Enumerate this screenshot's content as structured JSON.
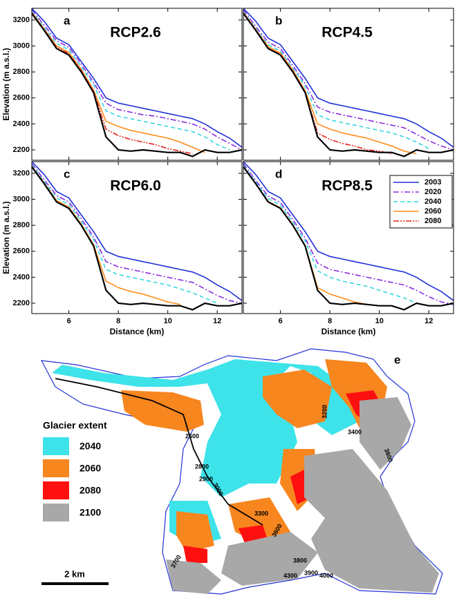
{
  "chart_data": [
    {
      "type": "line",
      "panel": "a",
      "title": "RCP2.6",
      "ylabel": "Elevation (m a.s.l.)",
      "x": [
        4.5,
        5,
        5.5,
        6,
        6.5,
        7,
        7.5,
        8,
        8.5,
        9,
        9.5,
        10,
        10.5,
        11,
        11.5,
        12,
        12.5,
        13
      ],
      "xlim": [
        4.5,
        13
      ],
      "xticks": [
        6,
        8,
        10,
        12
      ],
      "ylim": [
        2120,
        3290
      ],
      "yticks": [
        2200,
        2400,
        2600,
        2800,
        3000,
        3200
      ],
      "series": [
        {
          "color": "#000000",
          "style": "bold",
          "values": [
            3250,
            3120,
            2980,
            2930,
            2800,
            2640,
            2300,
            2200,
            2190,
            2200,
            2190,
            2180,
            2180,
            2150,
            2200,
            2180,
            2180,
            2200
          ]
        },
        {
          "color": "#1f2fd6",
          "style": "solid",
          "values": [
            3290,
            3190,
            3060,
            3010,
            2880,
            2750,
            2600,
            2560,
            2540,
            2520,
            2500,
            2480,
            2460,
            2440,
            2400,
            2340,
            2290,
            2220
          ]
        },
        {
          "color": "#8a2be2",
          "style": "dashdot",
          "values": [
            3280,
            3160,
            3040,
            2990,
            2860,
            2720,
            2560,
            2510,
            2490,
            2470,
            2460,
            2440,
            2420,
            2400,
            2360,
            2300,
            2250,
            2200
          ]
        },
        {
          "color": "#33d6e0",
          "style": "dashed",
          "values": [
            3270,
            3140,
            3020,
            2970,
            2840,
            2700,
            2500,
            2460,
            2440,
            2420,
            2400,
            2380,
            2360,
            2340,
            2300,
            2240,
            2200,
            null
          ]
        },
        {
          "color": "#ff8c1a",
          "style": "solid",
          "values": [
            3260,
            3130,
            3000,
            2950,
            2820,
            2660,
            2420,
            2380,
            2350,
            2330,
            2310,
            2290,
            2260,
            2220,
            2180,
            null,
            null,
            null
          ]
        },
        {
          "color": "#e8231e",
          "style": "dashdotdot",
          "values": [
            3255,
            3125,
            2990,
            2940,
            2810,
            2650,
            2360,
            2310,
            2280,
            2260,
            2240,
            2210,
            2190,
            2170,
            null,
            null,
            null,
            null
          ]
        }
      ]
    },
    {
      "type": "line",
      "panel": "b",
      "title": "RCP4.5",
      "x": [
        4.5,
        5,
        5.5,
        6,
        6.5,
        7,
        7.5,
        8,
        8.5,
        9,
        9.5,
        10,
        10.5,
        11,
        11.5,
        12,
        12.5,
        13
      ],
      "xlim": [
        4.5,
        13
      ],
      "xticks": [
        6,
        8,
        10,
        12
      ],
      "ylim": [
        2120,
        3290
      ],
      "yticks": [
        2200,
        2400,
        2600,
        2800,
        3000,
        3200
      ],
      "series": [
        {
          "color": "#000000",
          "style": "bold",
          "values": [
            3250,
            3120,
            2980,
            2930,
            2800,
            2640,
            2300,
            2200,
            2190,
            2200,
            2190,
            2180,
            2180,
            2150,
            2200,
            2180,
            2180,
            2200
          ]
        },
        {
          "color": "#1f2fd6",
          "style": "solid",
          "values": [
            3290,
            3190,
            3060,
            3010,
            2880,
            2750,
            2600,
            2560,
            2540,
            2520,
            2500,
            2480,
            2460,
            2440,
            2400,
            2340,
            2290,
            2220
          ]
        },
        {
          "color": "#8a2be2",
          "style": "dashdot",
          "values": [
            3280,
            3150,
            3030,
            2980,
            2850,
            2710,
            2530,
            2490,
            2470,
            2450,
            2430,
            2410,
            2390,
            2370,
            2320,
            2270,
            2230,
            2200
          ]
        },
        {
          "color": "#33d6e0",
          "style": "dashed",
          "values": [
            3265,
            3135,
            3010,
            2960,
            2830,
            2690,
            2470,
            2430,
            2410,
            2390,
            2370,
            2350,
            2330,
            2300,
            2260,
            2210,
            null,
            null
          ]
        },
        {
          "color": "#ff8c1a",
          "style": "solid",
          "values": [
            3258,
            3128,
            2995,
            2945,
            2815,
            2655,
            2400,
            2360,
            2330,
            2310,
            2290,
            2260,
            2230,
            2190,
            2170,
            null,
            null,
            null
          ]
        },
        {
          "color": "#e8231e",
          "style": "dashdotdot",
          "values": [
            3252,
            3122,
            2985,
            2935,
            2805,
            2645,
            2330,
            2280,
            2250,
            2230,
            2200,
            2190,
            2170,
            null,
            null,
            null,
            null,
            null
          ]
        }
      ]
    },
    {
      "type": "line",
      "panel": "c",
      "title": "RCP6.0",
      "ylabel": "Elevation (m a.s.l.)",
      "xlabel": "Distance (km)",
      "x": [
        4.5,
        5,
        5.5,
        6,
        6.5,
        7,
        7.5,
        8,
        8.5,
        9,
        9.5,
        10,
        10.5,
        11,
        11.5,
        12,
        12.5,
        13
      ],
      "xlim": [
        4.5,
        13
      ],
      "xticks": [
        6,
        8,
        10,
        12
      ],
      "ylim": [
        2120,
        3290
      ],
      "yticks": [
        2200,
        2400,
        2600,
        2800,
        3000,
        3200
      ],
      "series": [
        {
          "color": "#000000",
          "style": "bold",
          "values": [
            3250,
            3120,
            2980,
            2930,
            2800,
            2640,
            2300,
            2200,
            2190,
            2200,
            2190,
            2180,
            2180,
            2150,
            2200,
            2180,
            2180,
            2200
          ]
        },
        {
          "color": "#1f2fd6",
          "style": "solid",
          "values": [
            3290,
            3190,
            3060,
            3010,
            2880,
            2750,
            2600,
            2560,
            2540,
            2520,
            2500,
            2480,
            2460,
            2440,
            2400,
            2340,
            2290,
            2220
          ]
        },
        {
          "color": "#8a2be2",
          "style": "dashdot",
          "values": [
            3275,
            3150,
            3030,
            2980,
            2850,
            2710,
            2520,
            2480,
            2460,
            2440,
            2420,
            2400,
            2380,
            2360,
            2310,
            2260,
            2220,
            2200
          ]
        },
        {
          "color": "#33d6e0",
          "style": "dashed",
          "values": [
            3265,
            3135,
            3010,
            2960,
            2830,
            2690,
            2460,
            2420,
            2400,
            2380,
            2360,
            2340,
            2310,
            2280,
            2240,
            2200,
            null,
            null
          ]
        },
        {
          "color": "#ff8c1a",
          "style": "solid",
          "values": [
            3255,
            3125,
            2990,
            2940,
            2810,
            2650,
            2370,
            2320,
            2290,
            2270,
            2240,
            2210,
            2190,
            null,
            null,
            null,
            null,
            null
          ]
        }
      ]
    },
    {
      "type": "line",
      "panel": "d",
      "title": "RCP8.5",
      "xlabel": "Distance (km)",
      "legend": "upper right",
      "x": [
        4.5,
        5,
        5.5,
        6,
        6.5,
        7,
        7.5,
        8,
        8.5,
        9,
        9.5,
        10,
        10.5,
        11,
        11.5,
        12,
        12.5,
        13
      ],
      "xlim": [
        4.5,
        13
      ],
      "xticks": [
        6,
        8,
        10,
        12
      ],
      "ylim": [
        2120,
        3290
      ],
      "yticks": [
        2200,
        2400,
        2600,
        2800,
        3000,
        3200
      ],
      "series": [
        {
          "color": "#000000",
          "style": "bold",
          "values": [
            3250,
            3120,
            2980,
            2930,
            2800,
            2640,
            2300,
            2200,
            2190,
            2200,
            2190,
            2180,
            2180,
            2150,
            2200,
            2180,
            2180,
            2200
          ]
        },
        {
          "name": "2003",
          "color": "#1f2fd6",
          "style": "solid",
          "values": [
            3290,
            3190,
            3060,
            3010,
            2880,
            2750,
            2600,
            2560,
            2540,
            2520,
            2500,
            2480,
            2460,
            2440,
            2400,
            2340,
            2290,
            2220
          ]
        },
        {
          "name": "2020",
          "color": "#8a2be2",
          "style": "dashdot",
          "values": [
            3275,
            3145,
            3025,
            2975,
            2845,
            2700,
            2510,
            2460,
            2440,
            2420,
            2400,
            2380,
            2360,
            2340,
            2300,
            2250,
            2210,
            2190
          ]
        },
        {
          "name": "2040",
          "color": "#33d6e0",
          "style": "dashed",
          "values": [
            3262,
            3132,
            3005,
            2955,
            2825,
            2680,
            2450,
            2400,
            2370,
            2350,
            2330,
            2300,
            2270,
            2240,
            2200,
            null,
            null,
            null
          ]
        },
        {
          "name": "2060",
          "color": "#ff8c1a",
          "style": "solid",
          "values": [
            3252,
            3122,
            2985,
            2935,
            2805,
            2645,
            2320,
            2270,
            2240,
            2210,
            2190,
            null,
            null,
            null,
            null,
            null,
            null,
            null
          ]
        },
        {
          "name": "2080",
          "color": "#e8231e",
          "style": "dashdotdot",
          "values": [
            3250,
            3120,
            2980,
            2930,
            2800,
            2640,
            2300,
            null,
            null,
            null,
            null,
            null,
            null,
            null,
            null,
            null,
            null,
            null
          ]
        }
      ]
    }
  ],
  "map": {
    "panel": "e",
    "legend_title": "Glacier extent",
    "legend": [
      {
        "label": "2040",
        "color": "#3ee3ea"
      },
      {
        "label": "2060",
        "color": "#f7861f"
      },
      {
        "label": "2080",
        "color": "#ff1010"
      },
      {
        "label": "2100",
        "color": "#a8a8a8"
      }
    ],
    "contours": [
      "2600",
      "2800",
      "2900",
      "3000",
      "3200",
      "3300",
      "3400",
      "3600",
      "3600",
      "3800",
      "3900",
      "4000",
      "4300",
      "3700"
    ],
    "scale": "2 km"
  }
}
